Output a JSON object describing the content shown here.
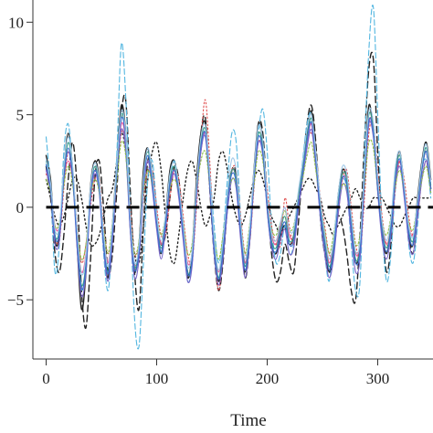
{
  "chart_data": {
    "type": "line",
    "title": "",
    "xlabel": "Time",
    "ylabel": "",
    "xlim": [
      -12,
      350
    ],
    "ylim": [
      -8.2,
      11.2
    ],
    "x_ticks": [
      0,
      100,
      200,
      300
    ],
    "y_ticks": [
      -5,
      0,
      5,
      10
    ],
    "grid": false,
    "legend": "none",
    "reference_line": {
      "y": 0,
      "style": "dashed",
      "color": "#000000"
    },
    "curve_x": [
      0,
      4,
      8,
      12,
      16,
      20,
      24,
      28,
      32,
      36,
      40,
      44,
      48,
      52,
      56,
      60,
      64,
      68,
      72,
      76,
      80,
      84,
      88,
      92,
      96,
      100,
      104,
      108,
      112,
      116,
      120,
      124,
      128,
      132,
      136,
      140,
      144,
      148,
      152,
      156,
      160,
      164,
      168,
      172,
      176,
      180,
      184,
      188,
      192,
      196,
      200,
      204,
      208,
      212,
      216,
      220,
      224,
      228,
      232,
      236,
      240,
      244,
      248,
      252,
      256,
      260,
      264,
      268,
      272,
      276,
      280,
      284,
      288,
      292,
      296,
      300,
      304,
      308,
      312,
      316,
      320,
      324,
      328,
      332,
      336,
      340,
      344,
      348
    ],
    "series": [
      {
        "color": "#222222",
        "dash": "",
        "values": [
          2.8,
          1.5,
          -1.8,
          -1.5,
          2.0,
          4.0,
          2.0,
          -2.0,
          -5.5,
          -3.5,
          1.0,
          2.5,
          1.5,
          -2.0,
          -3.8,
          -1.0,
          2.5,
          5.5,
          4.0,
          -1.0,
          -3.5,
          -2.0,
          2.0,
          3.2,
          1.5,
          -1.0,
          -2.5,
          -0.5,
          2.0,
          2.5,
          1.0,
          -1.5,
          -3.8,
          -2.5,
          1.5,
          4.0,
          4.5,
          1.5,
          -2.0,
          -4.0,
          -2.5,
          0.5,
          2.0,
          1.5,
          -1.5,
          -3.5,
          -1.5,
          2.0,
          4.5,
          3.5,
          0.0,
          -2.0,
          -2.5,
          -1.5,
          -1.0,
          -2.0,
          -1.5,
          0.5,
          2.0,
          4.0,
          5.2,
          3.0,
          0.0,
          -2.0,
          -3.5,
          -2.5,
          0.5,
          2.0,
          1.5,
          -1.0,
          -3.0,
          -2.0,
          2.0,
          5.5,
          4.0,
          1.0,
          -1.5,
          -2.5,
          -1.0,
          2.0,
          3.0,
          1.0,
          -1.5,
          -2.0,
          0.5,
          2.5,
          3.5,
          1.5
        ]
      },
      {
        "color": "#222222",
        "dash": "7,4",
        "values": [
          2.2,
          0.5,
          -2.5,
          -3.5,
          -1.5,
          1.5,
          3.5,
          1.0,
          -4.5,
          -6.5,
          -3.0,
          1.5,
          2.5,
          0.0,
          -3.5,
          -2.5,
          1.0,
          5.0,
          5.8,
          1.0,
          -3.5,
          -5.5,
          -1.0,
          2.5,
          2.0,
          -0.5,
          -2.0,
          -1.5,
          0.5,
          2.2,
          1.5,
          -1.0,
          -3.5,
          -3.0,
          1.0,
          4.0,
          4.8,
          1.0,
          -2.5,
          -4.5,
          -3.0,
          0.0,
          2.0,
          1.8,
          -1.0,
          -3.8,
          -2.0,
          1.5,
          4.5,
          4.0,
          0.5,
          -2.5,
          -4.0,
          -3.5,
          -2.0,
          -3.0,
          -3.5,
          -1.0,
          2.0,
          4.5,
          5.5,
          3.5,
          -0.5,
          -2.5,
          -3.5,
          -2.0,
          -0.5,
          -1.0,
          -2.5,
          -4.5,
          -5.0,
          -1.5,
          3.5,
          7.5,
          8.0,
          3.0,
          -1.0,
          -3.5,
          -2.0,
          1.5,
          2.5,
          1.0,
          -1.5,
          -2.5,
          -0.5,
          2.0,
          3.0,
          1.0
        ]
      },
      {
        "color": "#222222",
        "dash": "1.5,3",
        "values": [
          1.5,
          0.5,
          -0.5,
          -1.0,
          -0.5,
          0.5,
          1.5,
          1.5,
          0.5,
          -1.0,
          -2.0,
          -2.0,
          -1.5,
          -0.5,
          0.5,
          1.0,
          2.5,
          4.0,
          3.0,
          0.0,
          -2.5,
          -3.0,
          -1.0,
          1.5,
          3.0,
          3.5,
          2.0,
          -0.5,
          -2.5,
          -3.0,
          -1.5,
          0.5,
          2.0,
          2.5,
          1.5,
          0.0,
          -1.0,
          -0.5,
          0.5,
          2.5,
          3.0,
          2.0,
          0.5,
          -0.5,
          -1.0,
          -0.5,
          0.5,
          1.5,
          2.0,
          1.5,
          0.5,
          -0.5,
          -1.0,
          -1.5,
          -1.0,
          -0.5,
          0.0,
          0.5,
          1.0,
          1.5,
          1.5,
          1.0,
          0.5,
          -0.5,
          -1.0,
          -1.5,
          -1.0,
          -0.5,
          0.0,
          0.5,
          1.0,
          0.5,
          0.0,
          0.0,
          0.5,
          0.5,
          0.5,
          0.0,
          -0.5,
          -1.0,
          -1.0,
          -0.5,
          0.0,
          0.5,
          0.5,
          0.5,
          0.5,
          0.5
        ]
      },
      {
        "color": "#52b6e0",
        "dash": "6,3",
        "values": [
          3.8,
          1.0,
          -3.5,
          -2.0,
          3.0,
          4.5,
          2.0,
          -1.5,
          -4.5,
          -3.0,
          0.5,
          2.0,
          1.0,
          -2.5,
          -4.5,
          -1.5,
          3.0,
          8.8,
          6.0,
          0.0,
          -6.0,
          -7.5,
          -3.0,
          1.5,
          2.5,
          0.0,
          -2.5,
          -1.0,
          1.5,
          2.5,
          1.0,
          -1.5,
          -4.0,
          -3.0,
          0.5,
          3.0,
          4.0,
          2.0,
          -1.0,
          -3.0,
          -1.5,
          1.5,
          4.0,
          3.5,
          -0.5,
          -3.0,
          -2.0,
          1.5,
          4.0,
          5.3,
          3.0,
          -1.0,
          -3.0,
          -2.5,
          -1.0,
          -2.5,
          -2.0,
          0.5,
          2.5,
          4.5,
          5.0,
          2.5,
          -0.5,
          -2.5,
          -4.0,
          -2.0,
          0.5,
          1.5,
          1.0,
          -2.0,
          -4.5,
          -4.0,
          3.0,
          8.5,
          10.8,
          5.0,
          -1.0,
          -4.0,
          -2.5,
          1.0,
          2.5,
          1.0,
          -2.0,
          -3.0,
          -1.0,
          2.0,
          2.5,
          0.5
        ]
      },
      {
        "color": "#e8529a",
        "dash": "",
        "values": [
          2.0,
          1.0,
          -1.0,
          -1.0,
          1.5,
          2.5,
          1.5,
          -1.5,
          -3.5,
          -2.5,
          0.5,
          2.0,
          1.0,
          -1.5,
          -3.0,
          -1.0,
          2.0,
          4.5,
          3.5,
          -0.5,
          -3.0,
          -2.5,
          1.0,
          2.5,
          1.5,
          -0.5,
          -2.0,
          -1.0,
          1.0,
          2.0,
          1.0,
          -1.0,
          -3.0,
          -2.5,
          0.5,
          3.0,
          4.0,
          1.5,
          -2.0,
          -3.5,
          -2.0,
          0.5,
          2.0,
          1.5,
          -1.0,
          -3.0,
          -1.5,
          1.5,
          3.5,
          3.0,
          0.5,
          -1.5,
          -2.0,
          -1.0,
          0.0,
          -1.5,
          -1.5,
          0.5,
          2.0,
          3.5,
          4.5,
          2.5,
          0.0,
          -1.5,
          -3.0,
          -2.0,
          0.0,
          1.5,
          1.5,
          -0.5,
          -2.5,
          -2.0,
          1.5,
          4.5,
          4.5,
          1.5,
          -1.0,
          -2.0,
          -1.0,
          1.5,
          2.5,
          1.0,
          -1.0,
          -1.5,
          0.0,
          2.0,
          3.0,
          1.0
        ]
      },
      {
        "color": "#e05050",
        "dash": "1.5,2.5",
        "values": [
          1.8,
          1.0,
          -1.5,
          -1.8,
          1.0,
          3.0,
          2.0,
          -1.0,
          -3.0,
          -2.0,
          0.0,
          1.5,
          1.5,
          -1.0,
          -2.5,
          -1.5,
          1.5,
          4.0,
          3.5,
          0.0,
          -2.5,
          -2.0,
          0.5,
          2.0,
          2.0,
          0.0,
          -1.5,
          -1.5,
          0.5,
          2.0,
          1.5,
          -0.5,
          -2.5,
          -3.0,
          0.0,
          3.5,
          5.8,
          2.5,
          -2.0,
          -4.5,
          -2.5,
          0.5,
          2.0,
          2.0,
          -0.5,
          -2.5,
          -2.0,
          1.0,
          3.5,
          3.0,
          1.0,
          -1.0,
          -2.0,
          -2.0,
          0.5,
          -1.0,
          -2.0,
          0.0,
          1.5,
          3.5,
          4.0,
          3.0,
          0.5,
          -1.0,
          -2.5,
          -2.5,
          -0.5,
          1.5,
          2.0,
          0.0,
          -2.0,
          -2.5,
          0.5,
          4.0,
          4.5,
          2.0,
          -0.5,
          -2.0,
          -1.5,
          1.0,
          2.5,
          1.5,
          -0.5,
          -1.5,
          -0.5,
          1.5,
          2.5,
          1.5
        ]
      },
      {
        "color": "#3a9e88",
        "dash": "",
        "values": [
          2.5,
          1.2,
          -1.5,
          -1.2,
          1.8,
          3.5,
          2.0,
          -1.8,
          -4.2,
          -3.0,
          0.8,
          2.2,
          1.2,
          -1.8,
          -3.5,
          -1.2,
          2.2,
          5.0,
          3.8,
          -0.8,
          -3.2,
          -2.2,
          1.5,
          3.0,
          1.5,
          -0.8,
          -2.2,
          -0.8,
          1.5,
          2.2,
          1.0,
          -1.2,
          -3.5,
          -2.8,
          1.0,
          3.5,
          4.2,
          1.5,
          -2.0,
          -3.8,
          -2.2,
          0.5,
          2.0,
          1.5,
          -1.2,
          -3.2,
          -1.5,
          1.8,
          4.0,
          3.2,
          0.2,
          -1.8,
          -2.2,
          -1.2,
          -0.5,
          -1.8,
          -1.5,
          0.5,
          2.0,
          3.8,
          4.8,
          2.8,
          0.0,
          -1.8,
          -3.2,
          -2.2,
          0.2,
          1.8,
          1.5,
          -0.8,
          -2.8,
          -2.2,
          1.8,
          5.0,
          4.2,
          1.2,
          -1.2,
          -2.2,
          -1.0,
          1.8,
          2.8,
          1.0,
          -1.2,
          -1.8,
          0.2,
          2.2,
          3.2,
          1.2
        ]
      },
      {
        "color": "#7b67c8",
        "dash": "",
        "values": [
          2.0,
          0.8,
          -2.0,
          -1.8,
          1.5,
          3.0,
          1.5,
          -2.2,
          -4.8,
          -3.5,
          0.2,
          1.8,
          0.8,
          -2.2,
          -4.0,
          -1.8,
          1.8,
          4.2,
          3.0,
          -1.2,
          -3.8,
          -2.8,
          0.8,
          2.5,
          1.0,
          -1.2,
          -2.8,
          -1.2,
          1.0,
          1.8,
          0.5,
          -1.8,
          -4.0,
          -3.2,
          0.5,
          3.0,
          3.8,
          1.0,
          -2.5,
          -4.2,
          -2.8,
          -0.2,
          1.5,
          1.0,
          -1.8,
          -3.8,
          -2.0,
          1.2,
          3.5,
          2.8,
          -0.2,
          -2.2,
          -2.8,
          -1.8,
          -1.2,
          -2.5,
          -2.2,
          -0.2,
          1.5,
          3.2,
          4.2,
          2.2,
          -0.5,
          -2.5,
          -3.8,
          -2.8,
          -0.5,
          1.2,
          0.8,
          -1.5,
          -3.5,
          -2.8,
          1.2,
          4.5,
          3.8,
          0.8,
          -1.8,
          -2.8,
          -1.5,
          1.2,
          2.2,
          0.5,
          -1.8,
          -2.5,
          -0.5,
          1.5,
          2.5,
          0.8
        ]
      },
      {
        "color": "#8fbf4a",
        "dash": "2,2",
        "values": [
          1.5,
          0.8,
          -1.0,
          -0.8,
          1.2,
          2.2,
          1.2,
          -1.2,
          -2.8,
          -2.0,
          0.5,
          1.5,
          0.8,
          -1.2,
          -2.5,
          -0.8,
          1.5,
          3.5,
          2.8,
          -0.5,
          -2.5,
          -1.8,
          0.8,
          2.0,
          1.2,
          -0.5,
          -1.5,
          -0.5,
          1.0,
          1.5,
          0.8,
          -0.8,
          -2.5,
          -2.0,
          0.8,
          2.5,
          3.0,
          1.2,
          -1.5,
          -2.8,
          -1.5,
          0.5,
          1.5,
          1.2,
          -0.8,
          -2.5,
          -1.0,
          1.2,
          3.0,
          2.5,
          0.2,
          -1.2,
          -1.5,
          -0.8,
          -0.2,
          -1.2,
          -1.0,
          0.5,
          1.5,
          2.8,
          3.5,
          2.0,
          0.2,
          -1.2,
          -2.5,
          -1.5,
          0.2,
          1.2,
          1.0,
          -0.5,
          -2.0,
          -1.5,
          1.2,
          3.5,
          3.2,
          1.0,
          -0.8,
          -1.5,
          -0.5,
          1.2,
          2.0,
          0.8,
          -0.8,
          -1.2,
          0.2,
          1.5,
          2.2,
          0.8
        ]
      },
      {
        "color": "#3b6fd0",
        "dash": "",
        "values": [
          2.3,
          1.0,
          -1.6,
          -1.4,
          1.6,
          3.2,
          1.6,
          -1.9,
          -4.4,
          -3.2,
          0.6,
          2.0,
          1.0,
          -2.0,
          -3.6,
          -1.4,
          2.0,
          4.8,
          3.6,
          -0.9,
          -3.4,
          -2.4,
          1.2,
          2.8,
          1.3,
          -0.9,
          -2.4,
          -0.9,
          1.3,
          2.0,
          0.8,
          -1.4,
          -3.6,
          -2.9,
          0.8,
          3.3,
          4.0,
          1.3,
          -2.2,
          -3.9,
          -2.4,
          0.3,
          1.8,
          1.3,
          -1.4,
          -3.4,
          -1.7,
          1.6,
          3.8,
          3.0,
          0.0,
          -2.0,
          -2.4,
          -1.4,
          -0.8,
          -2.0,
          -1.8,
          0.2,
          1.8,
          3.6,
          4.6,
          2.6,
          -0.2,
          -2.0,
          -3.4,
          -2.4,
          0.0,
          1.6,
          1.2,
          -1.0,
          -3.0,
          -2.4,
          1.6,
          4.7,
          4.0,
          1.0,
          -1.4,
          -2.4,
          -1.2,
          1.6,
          2.6,
          0.8,
          -1.4,
          -2.0,
          0.0,
          2.0,
          3.0,
          1.0
        ]
      },
      {
        "color": "#a0c8e8",
        "dash": "",
        "values": [
          2.6,
          1.3,
          -1.2,
          -1.0,
          2.2,
          3.8,
          2.2,
          -1.2,
          -3.6,
          -2.6,
          1.0,
          2.4,
          1.4,
          -1.4,
          -3.2,
          -0.9,
          2.4,
          5.2,
          4.0,
          -0.4,
          -3.0,
          -2.0,
          1.6,
          3.2,
          1.8,
          -0.4,
          -1.8,
          -0.4,
          1.8,
          2.4,
          1.2,
          -0.9,
          -3.2,
          -2.4,
          1.2,
          3.8,
          4.4,
          1.8,
          -1.6,
          -3.4,
          -1.8,
          0.8,
          2.6,
          2.0,
          -0.8,
          -2.8,
          -1.2,
          2.0,
          4.4,
          3.6,
          0.6,
          -1.4,
          -1.8,
          -0.8,
          0.0,
          -1.2,
          -1.2,
          0.8,
          2.4,
          4.2,
          5.0,
          3.0,
          0.4,
          -1.4,
          -2.8,
          -1.8,
          0.6,
          2.2,
          1.8,
          -0.4,
          -2.4,
          -1.8,
          2.2,
          5.2,
          4.6,
          1.6,
          -0.8,
          -1.8,
          -0.6,
          2.2,
          3.0,
          1.2,
          -1.0,
          -1.6,
          0.4,
          2.4,
          3.4,
          1.4
        ]
      }
    ]
  }
}
